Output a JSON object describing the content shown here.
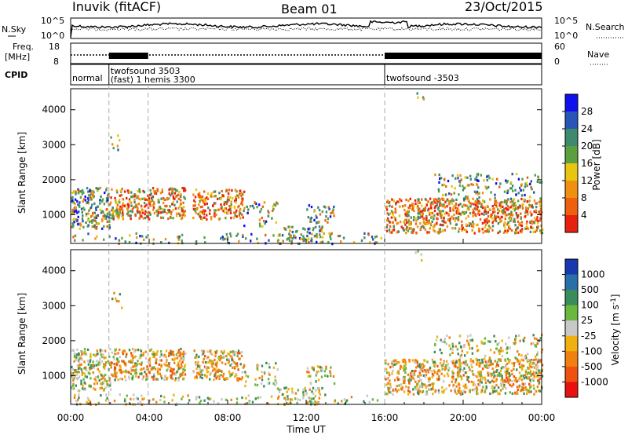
{
  "header": {
    "station": "Inuvik (fitACF)",
    "beam": "Beam 01",
    "date": "23/Oct/2015"
  },
  "noise_panel": {
    "left_label": "N.Sky",
    "right_label": "N.Search",
    "left_ticks": [
      "10^5",
      "10^0"
    ],
    "right_ticks": [
      "10^5",
      "10^0"
    ]
  },
  "freq_panel": {
    "left_label_1": "Freq.",
    "left_label_2": "[MHz]",
    "right_label": "Nave",
    "left_ticks": [
      "18",
      "8"
    ],
    "right_ticks": [
      "60",
      "0"
    ]
  },
  "cpid_panel": {
    "label": "CPID",
    "segments": [
      {
        "start": 0.0,
        "end": 1.95,
        "lines": [
          "normal"
        ]
      },
      {
        "start": 1.95,
        "end": 16.0,
        "lines": [
          "twofsound 3503",
          "(fast) 1 hemis 3300"
        ]
      },
      {
        "start": 16.0,
        "end": 24.0,
        "lines": [
          "twofsound -3503"
        ]
      }
    ]
  },
  "chart_data": [
    {
      "type": "heatmap",
      "name": "power",
      "ylabel": "Slant Range [km]",
      "ylim": [
        180,
        4600
      ],
      "y_ticks": [
        1000,
        2000,
        3000,
        4000
      ],
      "colorbar": {
        "label": "Power [dB]",
        "ticks": [
          "4",
          "8",
          "12",
          "16",
          "20",
          "24",
          "28"
        ],
        "colors": [
          "#1010ee",
          "#2a55b8",
          "#3e8a6e",
          "#5aa040",
          "#e8c610",
          "#f09010",
          "#ee6010",
          "#e82010"
        ]
      }
    },
    {
      "type": "heatmap",
      "name": "velocity",
      "ylabel": "Slant Range [km]",
      "xlabel": "Time UT",
      "ylim": [
        180,
        4600
      ],
      "y_ticks": [
        1000,
        2000,
        3000,
        4000
      ],
      "x_ticks": [
        "00:00",
        "04:00",
        "08:00",
        "12:00",
        "16:00",
        "20:00",
        "00:00"
      ],
      "colorbar": {
        "label_prefix": "Velocity [m s",
        "label_sup": "-1",
        "label_suffix": "]",
        "ticks": [
          "1000",
          "500",
          "100",
          "25",
          "-25",
          "-100",
          "-500",
          "-1000"
        ],
        "colors": [
          "#1838b0",
          "#2a70a8",
          "#3a8c5a",
          "#6ab840",
          "#c8c8c8",
          "#f0b010",
          "#f08010",
          "#f05010",
          "#e81010"
        ]
      }
    }
  ],
  "markers": {
    "dashed_times": [
      1.95,
      3.95,
      16.0
    ]
  }
}
